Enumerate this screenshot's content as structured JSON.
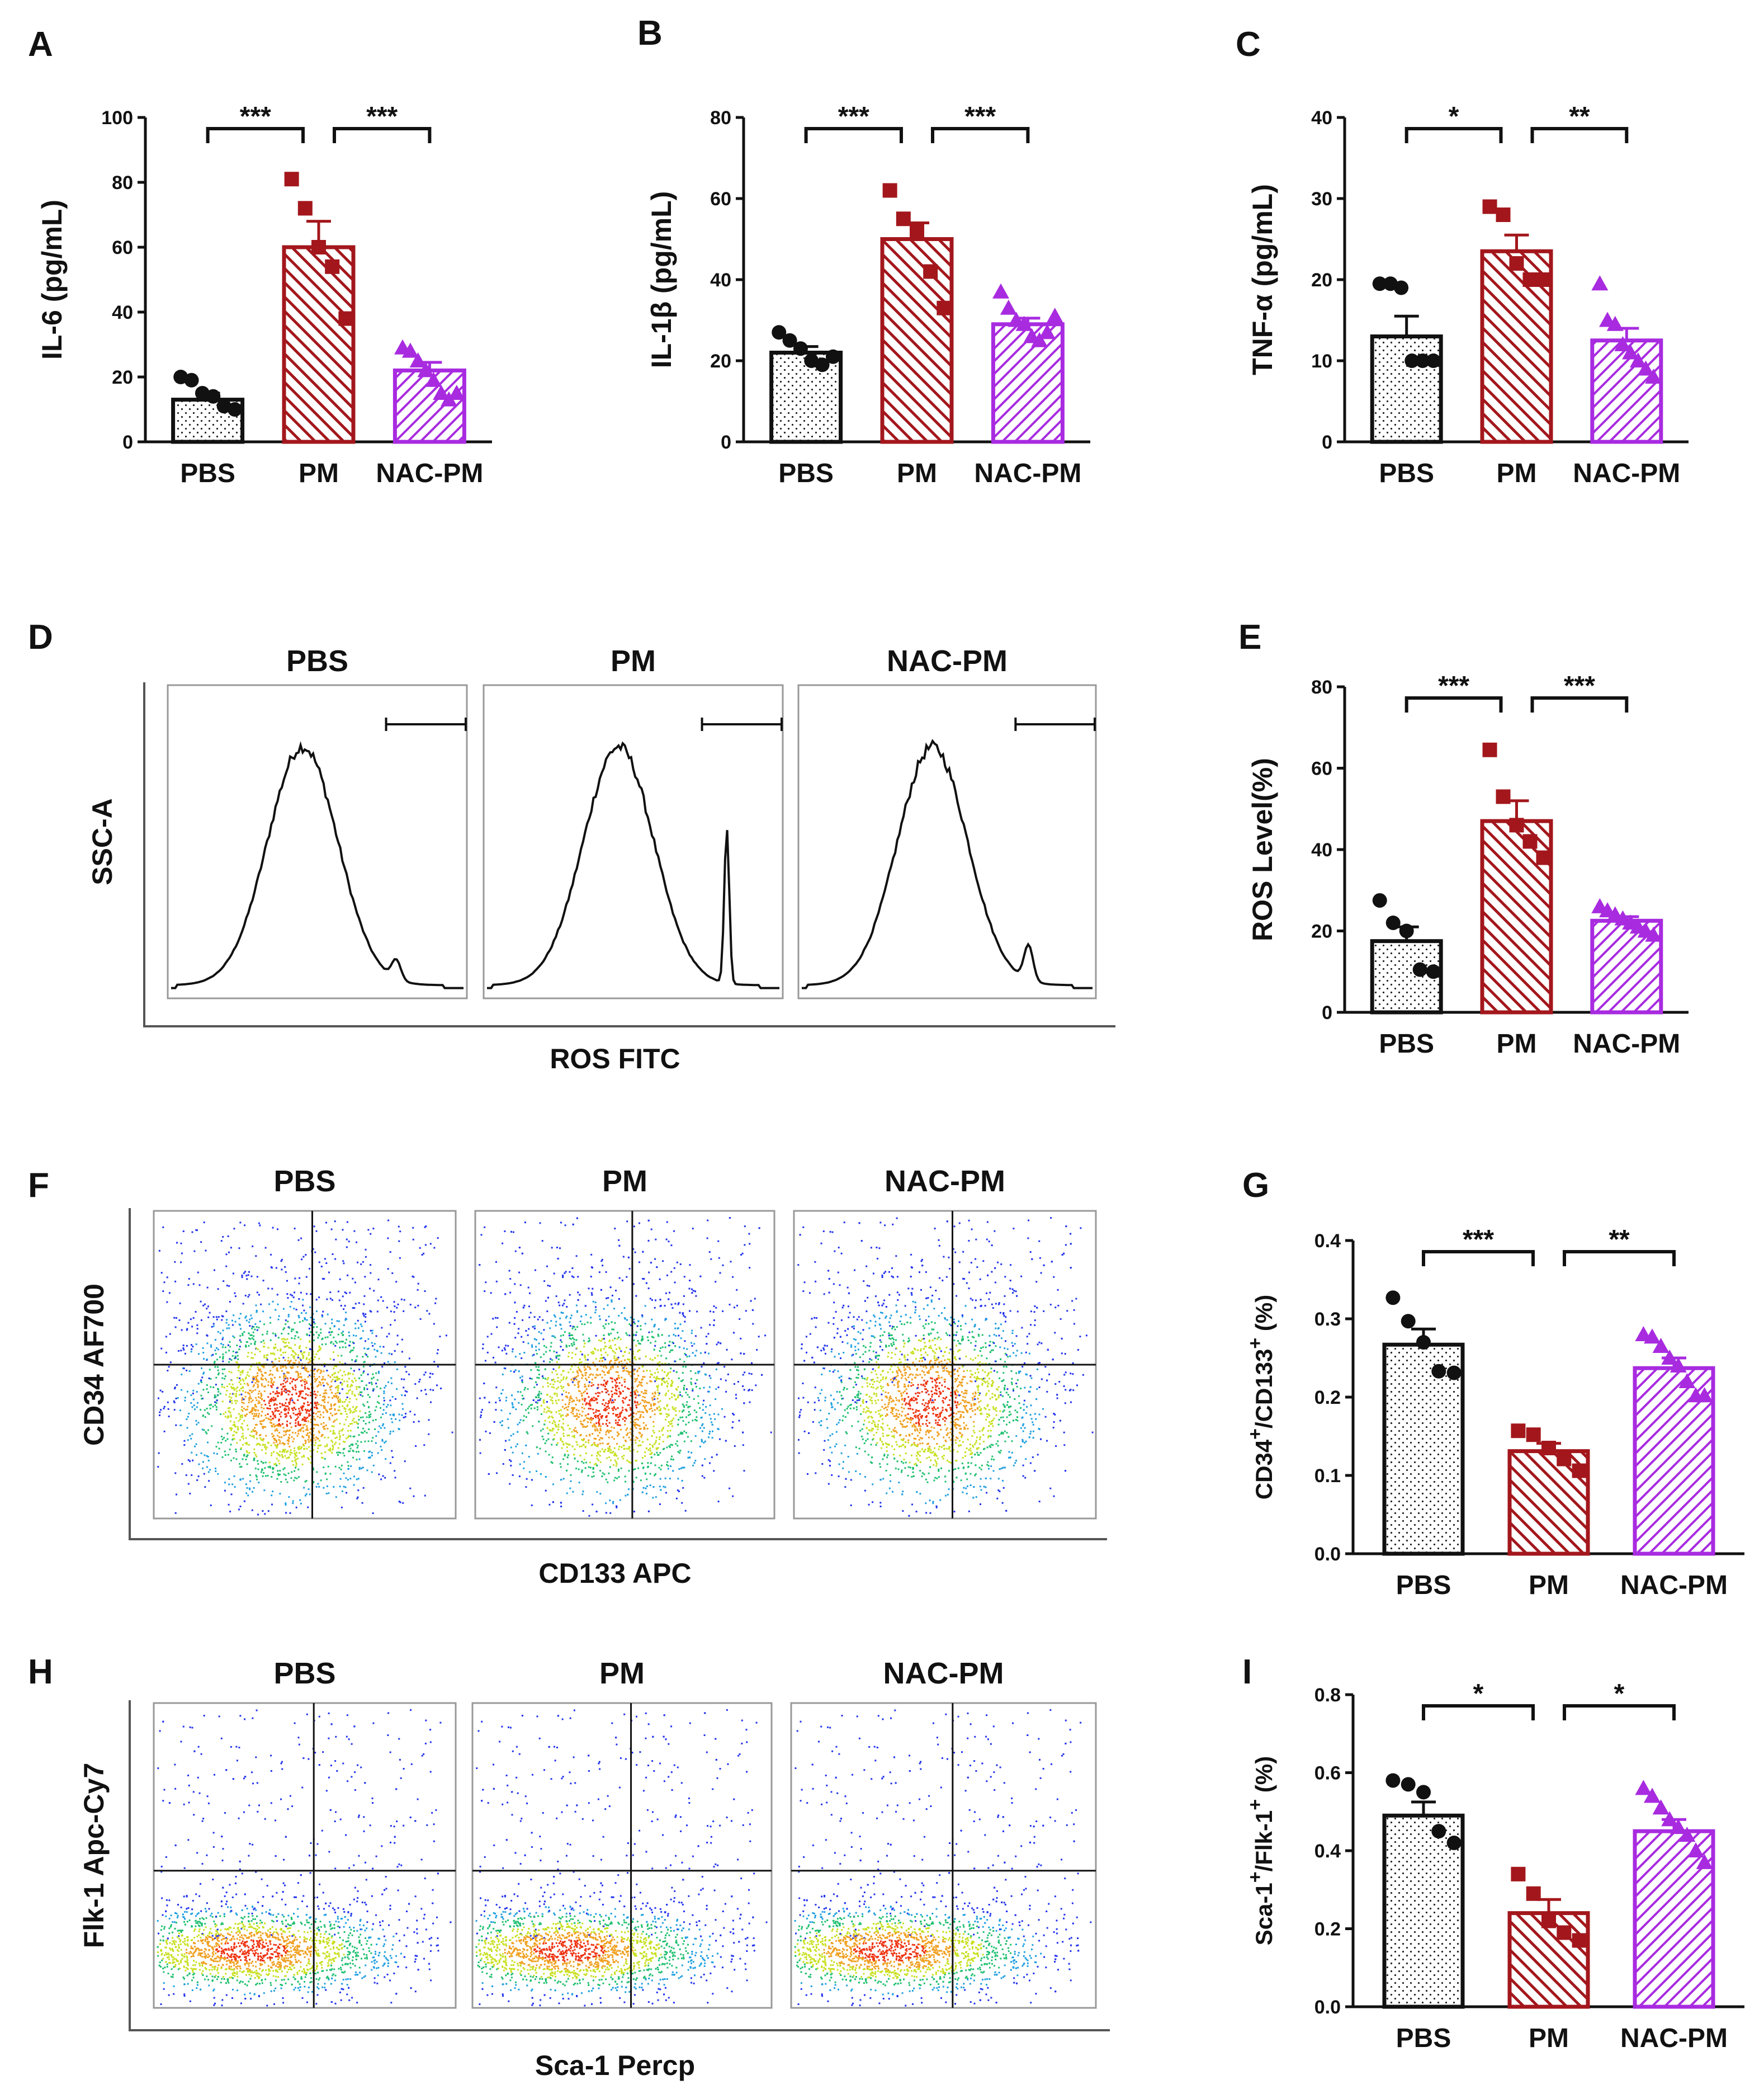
{
  "groups": [
    "PBS",
    "PM",
    "NAC-PM"
  ],
  "colors": {
    "PBS": "#111111",
    "PM": "#a3171c",
    "NAC-PM": "#a82be0"
  },
  "chart_data": [
    {
      "panel": "A",
      "type": "bar",
      "ylabel": "IL-6 (pg/mL)",
      "ylim": [
        0,
        100
      ],
      "yticks": [
        "0",
        "20",
        "40",
        "60",
        "80",
        "100"
      ],
      "categories": [
        "PBS",
        "PM",
        "NAC-PM"
      ],
      "values": [
        13,
        60,
        22
      ],
      "sem": [
        2,
        8,
        2.5
      ],
      "points": [
        [
          20,
          19,
          15,
          14,
          11,
          10
        ],
        [
          81,
          72,
          60,
          54,
          38
        ],
        [
          29,
          28,
          25,
          22,
          19,
          15,
          13,
          15
        ]
      ],
      "sig": [
        {
          "from": 0,
          "to": 1,
          "label": "***"
        },
        {
          "from": 1,
          "to": 2,
          "label": "***"
        }
      ]
    },
    {
      "panel": "B",
      "type": "bar",
      "ylabel": "IL-1β (pg/mL)",
      "ylim": [
        0,
        80
      ],
      "yticks": [
        "0",
        "20",
        "40",
        "60",
        "80"
      ],
      "categories": [
        "PBS",
        "PM",
        "NAC-PM"
      ],
      "values": [
        22,
        50,
        29
      ],
      "sem": [
        1.5,
        4,
        1.5
      ],
      "points": [
        [
          27,
          25,
          23,
          20,
          19,
          21
        ],
        [
          62,
          55,
          52,
          42,
          33
        ],
        [
          37,
          33,
          30,
          29,
          26,
          25,
          27,
          31
        ]
      ],
      "sig": [
        {
          "from": 0,
          "to": 1,
          "label": "***"
        },
        {
          "from": 1,
          "to": 2,
          "label": "***"
        }
      ]
    },
    {
      "panel": "C",
      "type": "bar",
      "ylabel": "TNF-α (pg/mL)",
      "ylim": [
        0,
        40
      ],
      "yticks": [
        "0",
        "10",
        "20",
        "30",
        "40"
      ],
      "categories": [
        "PBS",
        "PM",
        "NAC-PM"
      ],
      "values": [
        13,
        23.5,
        12.5
      ],
      "sem": [
        2.5,
        2,
        1.5
      ],
      "points": [
        [
          19.5,
          19.5,
          19,
          10,
          10,
          10
        ],
        [
          29,
          28,
          22,
          20,
          20
        ],
        [
          19.5,
          15,
          14.5,
          12,
          11,
          10,
          9,
          8
        ]
      ],
      "sig": [
        {
          "from": 0,
          "to": 1,
          "label": "*"
        },
        {
          "from": 1,
          "to": 2,
          "label": "**"
        }
      ]
    },
    {
      "panel": "E",
      "type": "bar",
      "ylabel": "ROS Level(%)",
      "ylim": [
        0,
        80
      ],
      "yticks": [
        "0",
        "20",
        "40",
        "60",
        "80"
      ],
      "categories": [
        "PBS",
        "PM",
        "NAC-PM"
      ],
      "values": [
        17.5,
        47,
        22.5
      ],
      "sem": [
        3.5,
        5,
        1
      ],
      "points": [
        [
          27.5,
          22,
          20,
          10.5,
          10
        ],
        [
          64.5,
          53,
          46,
          42,
          38
        ],
        [
          26,
          25,
          24,
          23,
          22,
          21,
          20,
          19
        ]
      ],
      "sig": [
        {
          "from": 0,
          "to": 1,
          "label": "***"
        },
        {
          "from": 1,
          "to": 2,
          "label": "***"
        }
      ]
    },
    {
      "panel": "G",
      "type": "bar",
      "ylabel": "CD34+/CD133+ (%)",
      "ylim": [
        0,
        0.4
      ],
      "yticks": [
        "0.0",
        "0.1",
        "0.2",
        "0.3",
        "0.4"
      ],
      "categories": [
        "PBS",
        "PM",
        "NAC-PM"
      ],
      "values": [
        0.267,
        0.131,
        0.237
      ],
      "sem": [
        0.02,
        0.01,
        0.013
      ],
      "points": [
        [
          0.327,
          0.297,
          0.27,
          0.233,
          0.231
        ],
        [
          0.157,
          0.152,
          0.135,
          0.121,
          0.106
        ],
        [
          0.28,
          0.277,
          0.265,
          0.25,
          0.24,
          0.22,
          0.202,
          0.202
        ]
      ],
      "sig": [
        {
          "from": 0,
          "to": 1,
          "label": "***"
        },
        {
          "from": 1,
          "to": 2,
          "label": "**"
        }
      ]
    },
    {
      "panel": "I",
      "type": "bar",
      "ylabel": "Sca-1+/Flk-1+ (%)",
      "ylim": [
        0,
        0.8
      ],
      "yticks": [
        "0.0",
        "0.2",
        "0.4",
        "0.6",
        "0.8"
      ],
      "categories": [
        "PBS",
        "PM",
        "NAC-PM"
      ],
      "values": [
        0.49,
        0.24,
        0.45
      ],
      "sem": [
        0.035,
        0.035,
        0.03
      ],
      "points": [
        [
          0.58,
          0.57,
          0.55,
          0.45,
          0.42
        ],
        [
          0.34,
          0.29,
          0.22,
          0.19,
          0.17
        ],
        [
          0.56,
          0.54,
          0.51,
          0.48,
          0.46,
          0.44,
          0.4,
          0.37
        ]
      ],
      "sig": [
        {
          "from": 0,
          "to": 1,
          "label": "*"
        },
        {
          "from": 1,
          "to": 2,
          "label": "*"
        }
      ]
    }
  ],
  "flow_panels": [
    {
      "panel": "D",
      "type": "histogram",
      "ylabel": "SSC-A",
      "xlabel": "ROS FITC",
      "titles": [
        "PBS",
        "PM",
        "NAC-PM"
      ]
    },
    {
      "panel": "F",
      "type": "scatter",
      "ylabel": "CD34 AF700",
      "xlabel": "CD133 APC",
      "titles": [
        "PBS",
        "PM",
        "NAC-PM"
      ]
    },
    {
      "panel": "H",
      "type": "scatter",
      "ylabel": "Flk-1 Apc-Cy7",
      "xlabel": "Sca-1 Percp",
      "titles": [
        "PBS",
        "PM",
        "NAC-PM"
      ]
    }
  ]
}
